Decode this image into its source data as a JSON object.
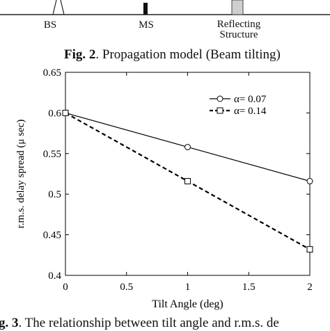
{
  "fig2": {
    "labels": {
      "bs": "BS",
      "ms": "MS",
      "reflecting_line1": "Reflecting",
      "reflecting_line2": "Structure"
    },
    "caption": {
      "prefix": "Fig. 2",
      "text": ". Propagation model (Beam tilting)"
    }
  },
  "fig3": {
    "caption": {
      "prefix": "g. 3",
      "text": ". The relationship between tilt angle and r.m.s. de"
    }
  },
  "chart_data": {
    "type": "line",
    "xlabel": "Tilt Angle (deg)",
    "ylabel": "r.m.s. delay spread (μ sec)",
    "xlim": [
      0,
      2
    ],
    "ylim": [
      0.4,
      0.65
    ],
    "xticks": [
      0,
      0.5,
      1,
      1.5,
      2
    ],
    "xtick_labels": [
      "0",
      "0.5",
      "1",
      "1.5",
      "2"
    ],
    "yticks": [
      0.4,
      0.45,
      0.5,
      0.55,
      0.6,
      0.65
    ],
    "ytick_labels": [
      "0.4",
      "0.45",
      "0.5",
      "0.55",
      "0.6",
      "0.65"
    ],
    "grid": false,
    "legend_position": "top-right",
    "x": [
      0,
      1,
      2
    ],
    "series": [
      {
        "name": "α= 0.07",
        "values": [
          0.6,
          0.558,
          0.516
        ],
        "marker": "circle",
        "line": "solid",
        "color": "#000000"
      },
      {
        "name": "α= 0.14",
        "values": [
          0.6,
          0.516,
          0.432
        ],
        "marker": "square",
        "line": "dashed",
        "color": "#000000"
      }
    ]
  }
}
